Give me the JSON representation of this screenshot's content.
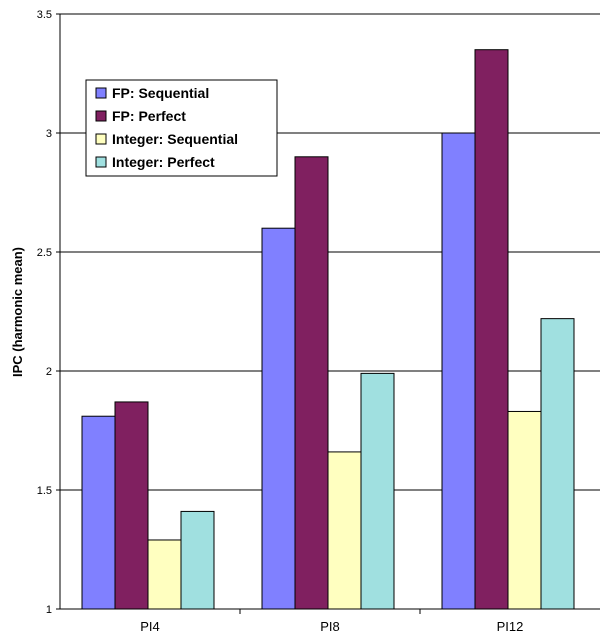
{
  "chart_data": {
    "type": "bar",
    "categories": [
      "PI4",
      "PI8",
      "PI12"
    ],
    "series": [
      {
        "name": "FP: Sequential",
        "values": [
          1.81,
          2.6,
          3.0
        ],
        "color": "#8080ff"
      },
      {
        "name": "FP: Perfect",
        "values": [
          1.87,
          2.9,
          3.35
        ],
        "color": "#802060"
      },
      {
        "name": "Integer: Sequential",
        "values": [
          1.29,
          1.66,
          1.83
        ],
        "color": "#ffffc0"
      },
      {
        "name": "Integer: Perfect",
        "values": [
          1.41,
          1.99,
          2.22
        ],
        "color": "#a0e0e0"
      }
    ],
    "ylabel": "IPC (harmonic mean)",
    "xlabel": "",
    "title": "",
    "ylim": [
      1,
      3.5
    ],
    "yticks": [
      "1",
      "1.5",
      "2",
      "2.5",
      "3",
      "3.5"
    ],
    "grid": true,
    "legend_position": "top-left"
  }
}
